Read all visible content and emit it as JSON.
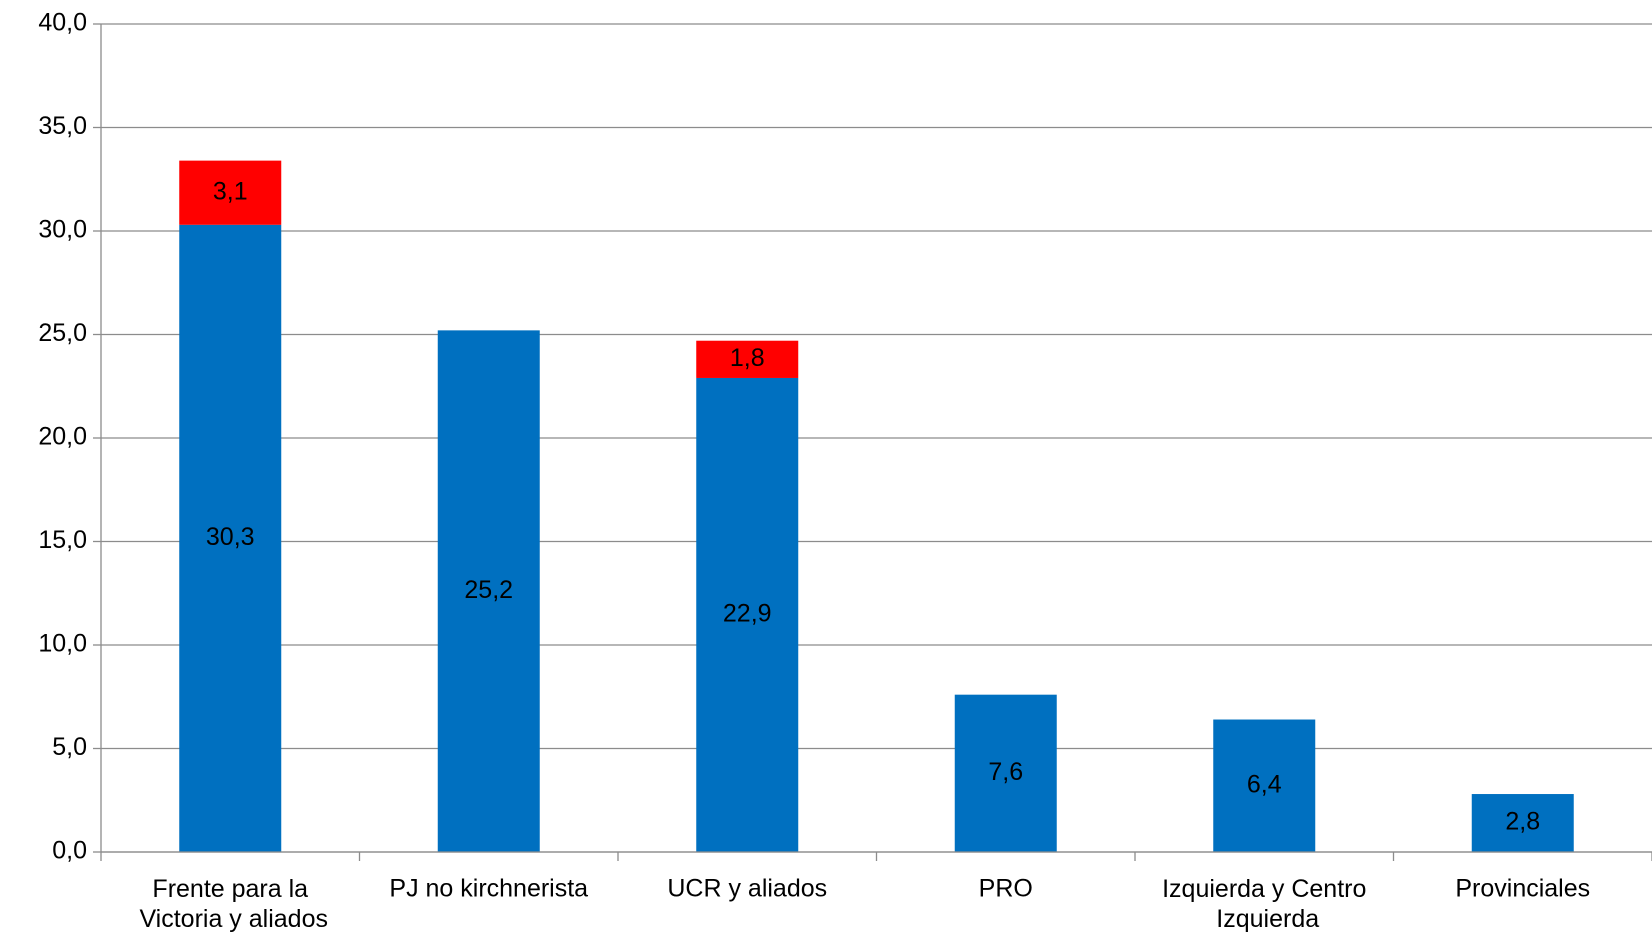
{
  "chart_data": {
    "type": "stacked-bar",
    "categories": [
      "Frente para la Victoria y aliados",
      "PJ no kirchnerista",
      "UCR y aliados",
      "PRO",
      "Izquierda y Centro Izquierda",
      "Provinciales"
    ],
    "series": [
      {
        "color": "#0070c0",
        "values": [
          30.3,
          25.2,
          22.9,
          7.6,
          6.4,
          2.8
        ],
        "value_labels": [
          "30,3",
          "25,2",
          "22,9",
          "7,6",
          "6,4",
          "2,8"
        ]
      },
      {
        "color": "#ff0000",
        "values": [
          3.1,
          null,
          1.8,
          null,
          null,
          null
        ],
        "value_labels": [
          "3,1",
          null,
          "1,8",
          null,
          null,
          null
        ]
      }
    ],
    "ylim": [
      0,
      40
    ],
    "yticks": [
      {
        "value": 0,
        "label": "0,0"
      },
      {
        "value": 5,
        "label": "5,0"
      },
      {
        "value": 10,
        "label": "10,0"
      },
      {
        "value": 15,
        "label": "15,0"
      },
      {
        "value": 20,
        "label": "20,0"
      },
      {
        "value": 25,
        "label": "25,0"
      },
      {
        "value": 30,
        "label": "30,0"
      },
      {
        "value": 35,
        "label": "35,0"
      },
      {
        "value": 40,
        "label": "40,0"
      }
    ],
    "grid": true
  }
}
